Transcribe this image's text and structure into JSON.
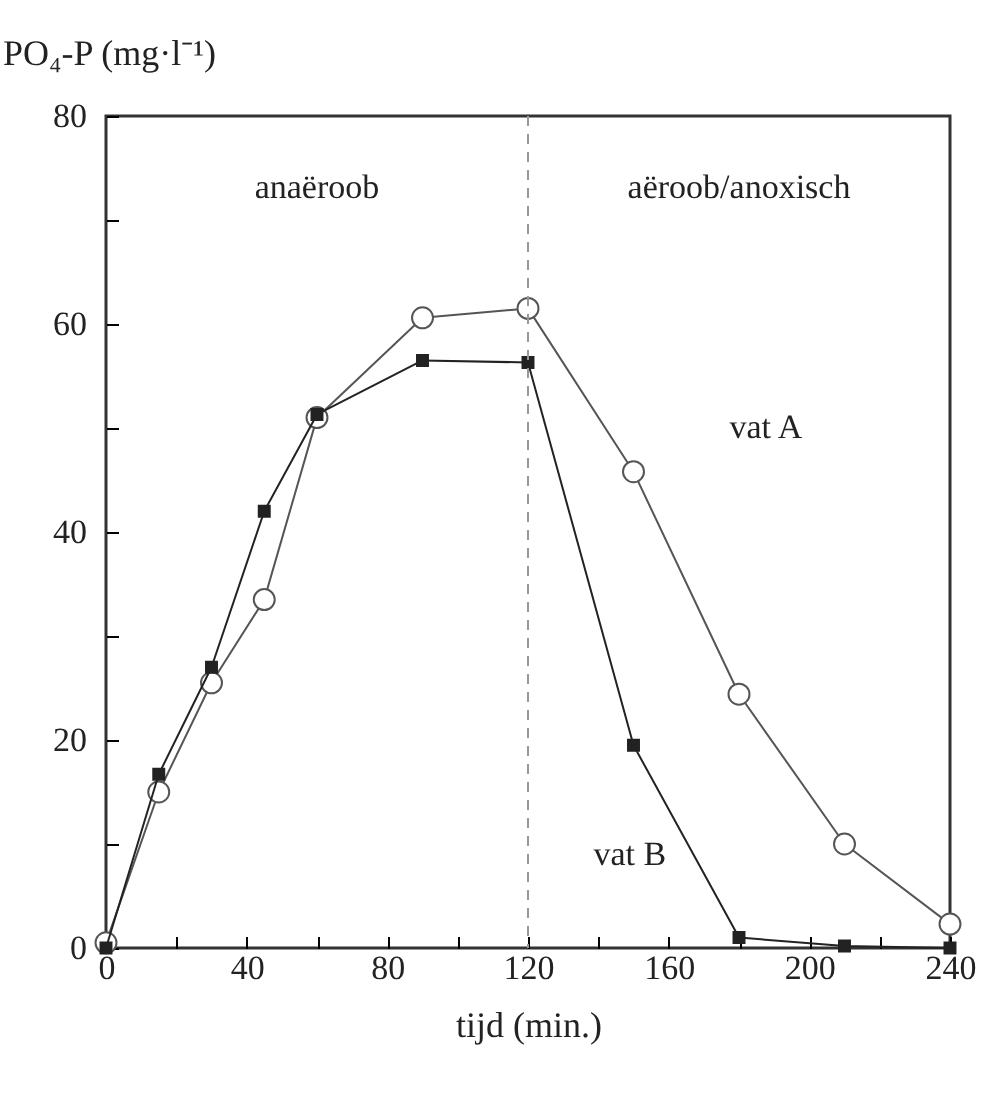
{
  "chart_data": {
    "type": "line",
    "xlabel": "tijd (min.)",
    "ylabel": "PO₄-P (mg·l⁻¹)",
    "x": [
      0,
      15,
      30,
      45,
      60,
      90,
      120,
      150,
      180,
      210,
      240
    ],
    "series": [
      {
        "name": "vat A",
        "color": "#555555",
        "marker": "circle",
        "values": [
          0.5,
          15,
          25.5,
          33.5,
          51,
          60.6,
          61.5,
          45.8,
          24.4,
          10,
          2.3
        ]
      },
      {
        "name": "vat B",
        "color": "#222222",
        "marker": "square",
        "values": [
          0,
          16.7,
          27,
          42,
          51.3,
          56.5,
          56.3,
          19.5,
          1,
          0.2,
          0
        ]
      }
    ],
    "xlim": [
      0,
      240
    ],
    "ylim": [
      0,
      80
    ],
    "xticks": [
      0,
      {
        "value": 20,
        "label": null
      },
      40,
      {
        "value": 60,
        "label": null
      },
      80,
      {
        "value": 100,
        "label": null
      },
      120,
      {
        "value": 140,
        "label": null
      },
      160,
      {
        "value": 180,
        "label": null
      },
      200,
      {
        "value": 220,
        "label": null
      },
      240
    ],
    "yticks": [
      0,
      {
        "value": 10,
        "label": null
      },
      20,
      {
        "value": 30,
        "label": null
      },
      40,
      {
        "value": 50,
        "label": null
      },
      60,
      {
        "value": 70,
        "label": null
      },
      80
    ],
    "ref_lines": [
      {
        "axis": "x",
        "value": 120,
        "line_style": "dashed",
        "color": "#999999"
      }
    ],
    "annotations": [
      "anaëroob",
      "aëroob/anoxisch"
    ],
    "grid": false,
    "legend": false
  }
}
